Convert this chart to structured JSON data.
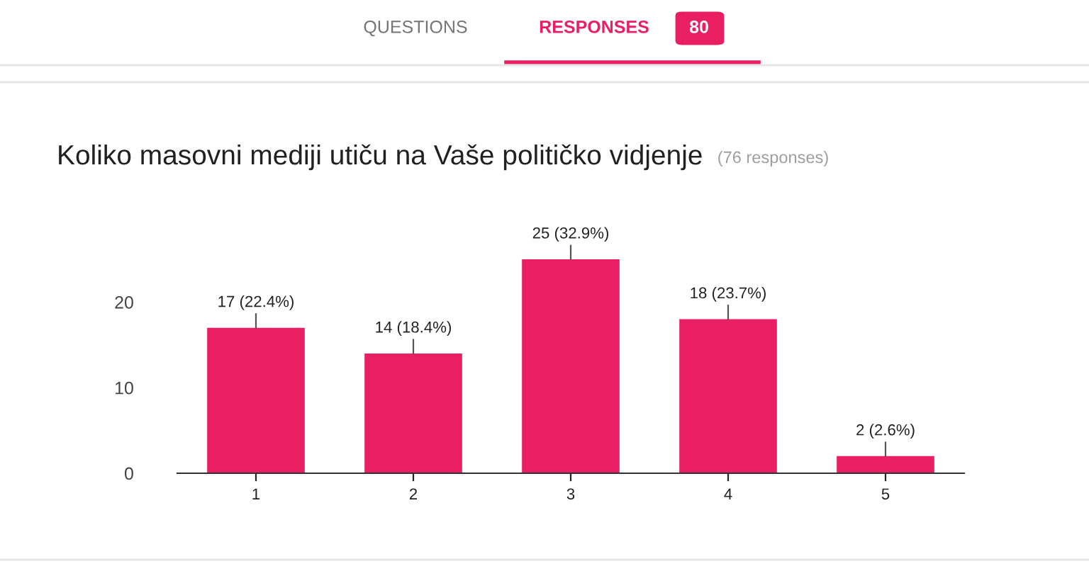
{
  "chart_data": {
    "type": "bar",
    "title": "Koliko masovni mediji utiču na Vaše političko vidjenje",
    "subtitle": "(76 responses)",
    "categories": [
      "1",
      "2",
      "3",
      "4",
      "5"
    ],
    "values": [
      17,
      14,
      25,
      18,
      2
    ],
    "value_labels": [
      "17 (22.4%)",
      "14 (18.4%)",
      "25 (32.9%)",
      "18 (23.7%)",
      "2 (2.6%)"
    ],
    "color": "#e91e63",
    "ylim": [
      0,
      25
    ],
    "yticks": [
      0,
      10,
      20
    ],
    "grid": false,
    "legend": false,
    "annotations": [
      "QUESTIONS",
      "RESPONSES",
      "80"
    ]
  }
}
